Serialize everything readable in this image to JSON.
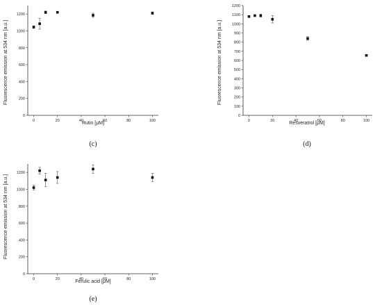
{
  "chart_data": [
    {
      "type": "scatter",
      "panel_label": "(c)",
      "xlabel": "Rutin [μM]",
      "ylabel": "Fluorescence emission at 534 nm [a.u.]",
      "xlim": [
        -5,
        105
      ],
      "ylim": [
        0,
        1300
      ],
      "xticks": [
        "0",
        "20",
        "40",
        "60",
        "80",
        "100"
      ],
      "yticks": [
        "0",
        "200",
        "400",
        "600",
        "800",
        "1000",
        "1200"
      ],
      "points": [
        {
          "x": 0,
          "y": 1045,
          "err": 15
        },
        {
          "x": 5,
          "y": 1085,
          "err": 65
        },
        {
          "x": 10,
          "y": 1220,
          "err": 15
        },
        {
          "x": 20,
          "y": 1220,
          "err": 10
        },
        {
          "x": 50,
          "y": 1185,
          "err": 25
        },
        {
          "x": 100,
          "y": 1210,
          "err": 15
        }
      ]
    },
    {
      "type": "scatter",
      "panel_label": "(d)",
      "xlabel": "Resveratrol [μM]",
      "ylabel": "Fluorescence emission at 534 nm [a.u.]",
      "xlim": [
        -5,
        105
      ],
      "ylim": [
        0,
        1200
      ],
      "xticks": [
        "0",
        "20",
        "40",
        "60",
        "80",
        "100"
      ],
      "yticks": [
        "0",
        "100",
        "200",
        "300",
        "400",
        "500",
        "600",
        "700",
        "800",
        "900",
        "1000",
        "1100",
        "1200"
      ],
      "points": [
        {
          "x": 0,
          "y": 1080,
          "err": 10
        },
        {
          "x": 5,
          "y": 1090,
          "err": 10
        },
        {
          "x": 10,
          "y": 1090,
          "err": 15
        },
        {
          "x": 20,
          "y": 1050,
          "err": 40
        },
        {
          "x": 50,
          "y": 840,
          "err": 20
        },
        {
          "x": 100,
          "y": 655,
          "err": 10
        }
      ]
    },
    {
      "type": "scatter",
      "panel_label": "(e)",
      "xlabel": "Ferulic acid [μM]",
      "ylabel": "Fluorescence emission at 534 nm [a.u.]",
      "xlim": [
        -5,
        105
      ],
      "ylim": [
        0,
        1300
      ],
      "xticks": [
        "0",
        "20",
        "40",
        "60",
        "80",
        "100"
      ],
      "yticks": [
        "0",
        "200",
        "400",
        "600",
        "800",
        "1000",
        "1200"
      ],
      "points": [
        {
          "x": 0,
          "y": 1020,
          "err": 30
        },
        {
          "x": 5,
          "y": 1220,
          "err": 40
        },
        {
          "x": 10,
          "y": 1110,
          "err": 80
        },
        {
          "x": 20,
          "y": 1140,
          "err": 70
        },
        {
          "x": 50,
          "y": 1240,
          "err": 50
        },
        {
          "x": 100,
          "y": 1140,
          "err": 50
        }
      ]
    }
  ]
}
